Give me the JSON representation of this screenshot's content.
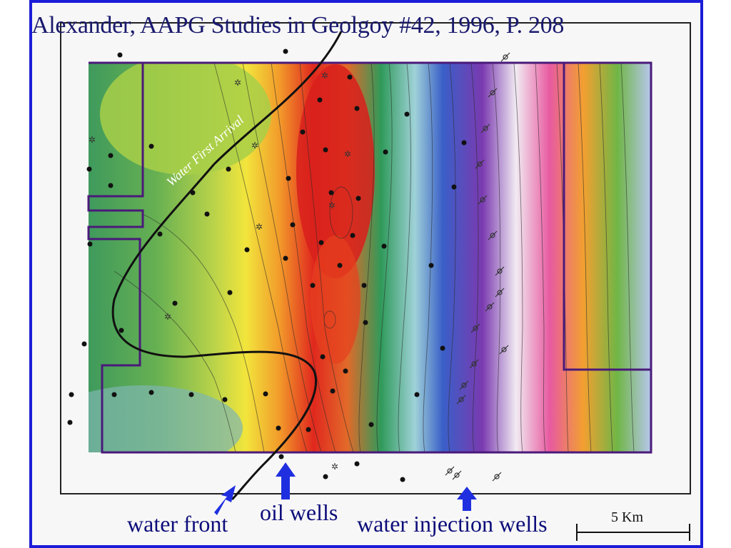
{
  "slide": {
    "citation": "Alexander, AAPG Studies in Geolgoy #42, 1996, P. 208",
    "map_labels": {
      "water_first_arrival": "Water First Arrival"
    },
    "annotations": {
      "water_front": "water front",
      "oil_wells": "oil wells",
      "water_injection_wells": "water injection wells"
    },
    "scale_bar": "5 Km",
    "colors": {
      "border": "#1c1cd8",
      "arrow": "#1f2fe0",
      "label": "#0c0c7a"
    }
  }
}
